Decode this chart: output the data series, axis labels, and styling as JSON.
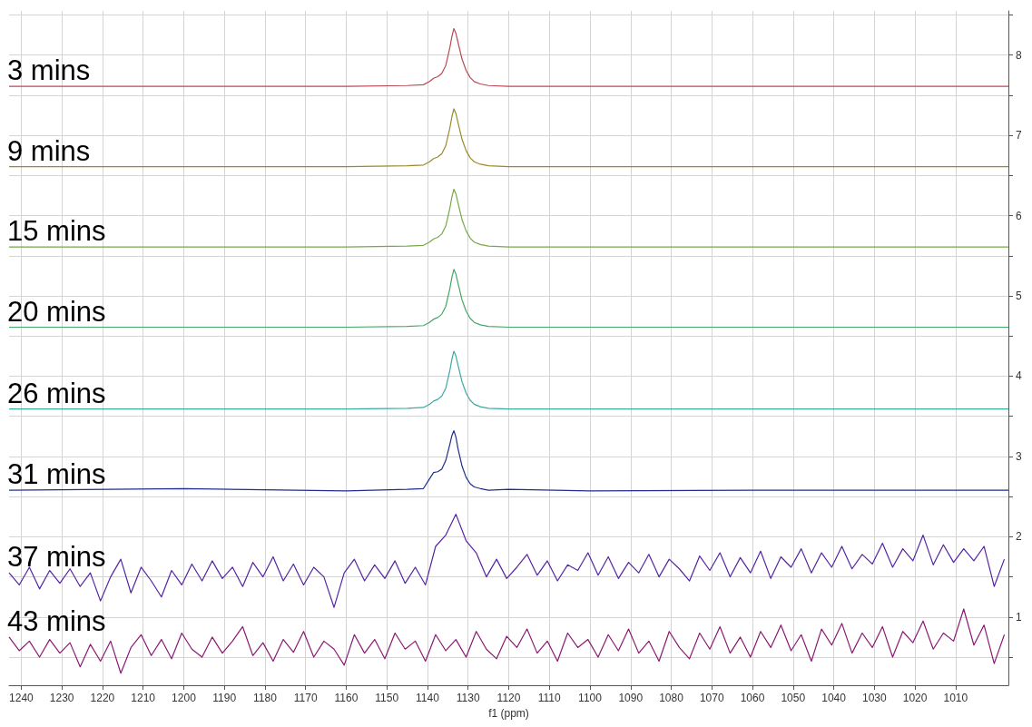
{
  "chart_data": {
    "type": "line",
    "xlabel": "f1 (ppm)",
    "grid": true,
    "x": [
      1243,
      1200,
      1160,
      1145,
      1141,
      1139.5,
      1138.5,
      1137.5,
      1136.5,
      1135.5,
      1134.5,
      1134,
      1133.5,
      1133,
      1132.5,
      1131.5,
      1130.5,
      1129.5,
      1128.5,
      1127,
      1125,
      1120,
      1100,
      1060,
      997
    ],
    "xlim": [
      1243,
      997
    ],
    "xticks": [
      1240,
      1230,
      1220,
      1210,
      1200,
      1190,
      1180,
      1170,
      1160,
      1150,
      1140,
      1130,
      1120,
      1110,
      1100,
      1090,
      1080,
      1070,
      1060,
      1050,
      1040,
      1030,
      1020,
      1010
    ],
    "ylim": [
      0.15,
      8.55
    ],
    "yticks": [
      {
        "value": 0.5,
        "label": null
      },
      1,
      {
        "value": 1.5,
        "label": null
      },
      2,
      {
        "value": 2.5,
        "label": null
      },
      3,
      {
        "value": 3.5,
        "label": null
      },
      4,
      {
        "value": 4.5,
        "label": null
      },
      5,
      {
        "value": 5.5,
        "label": null
      },
      6,
      {
        "value": 6.5,
        "label": null
      },
      7,
      {
        "value": 7.5,
        "label": null
      },
      8,
      {
        "value": 8.5,
        "label": null
      }
    ],
    "series": [
      {
        "name": "3 mins",
        "color": "#b84a55",
        "values": [
          7.61,
          7.61,
          7.61,
          7.62,
          7.63,
          7.67,
          7.71,
          7.73,
          7.77,
          7.87,
          8.09,
          8.23,
          8.33,
          8.27,
          8.16,
          7.95,
          7.81,
          7.72,
          7.67,
          7.64,
          7.62,
          7.61,
          7.61,
          7.61,
          7.61
        ]
      },
      {
        "name": "9 mins",
        "color": "#9a8a2c",
        "values": [
          6.61,
          6.61,
          6.61,
          6.62,
          6.63,
          6.67,
          6.71,
          6.73,
          6.77,
          6.87,
          7.09,
          7.23,
          7.33,
          7.27,
          7.16,
          6.95,
          6.81,
          6.72,
          6.67,
          6.64,
          6.62,
          6.61,
          6.61,
          6.61,
          6.61
        ]
      },
      {
        "name": "15 mins",
        "color": "#78a848",
        "values": [
          5.61,
          5.61,
          5.61,
          5.62,
          5.63,
          5.67,
          5.71,
          5.73,
          5.77,
          5.87,
          6.09,
          6.23,
          6.33,
          6.27,
          6.16,
          5.95,
          5.81,
          5.72,
          5.67,
          5.64,
          5.62,
          5.61,
          5.61,
          5.61,
          5.61
        ]
      },
      {
        "name": "20 mins",
        "color": "#45a865",
        "values": [
          4.61,
          4.61,
          4.61,
          4.62,
          4.63,
          4.67,
          4.71,
          4.73,
          4.77,
          4.87,
          5.09,
          5.23,
          5.33,
          5.27,
          5.16,
          4.95,
          4.81,
          4.72,
          4.67,
          4.64,
          4.62,
          4.61,
          4.61,
          4.61,
          4.61
        ]
      },
      {
        "name": "26 mins",
        "color": "#3aaaa0",
        "values": [
          3.59,
          3.59,
          3.59,
          3.6,
          3.61,
          3.65,
          3.69,
          3.71,
          3.75,
          3.85,
          4.07,
          4.21,
          4.31,
          4.25,
          4.14,
          3.93,
          3.79,
          3.7,
          3.65,
          3.62,
          3.6,
          3.59,
          3.59,
          3.59,
          3.59
        ]
      },
      {
        "name": "31 mins",
        "color": "#1f2f8a",
        "values": [
          2.58,
          2.6,
          2.57,
          2.59,
          2.6,
          2.72,
          2.8,
          2.81,
          2.84,
          2.95,
          3.15,
          3.26,
          3.32,
          3.24,
          3.1,
          2.88,
          2.74,
          2.66,
          2.62,
          2.6,
          2.58,
          2.59,
          2.57,
          2.58,
          2.58
        ]
      },
      {
        "name": "37 mins",
        "color": "#5424a4",
        "x": [
          1243,
          1240.5,
          1238,
          1235.5,
          1233,
          1230.5,
          1228,
          1225.5,
          1223,
          1220.5,
          1218,
          1215.5,
          1213,
          1210.5,
          1208,
          1205.5,
          1203,
          1200.5,
          1198,
          1195.5,
          1193,
          1190.5,
          1188,
          1185.5,
          1183,
          1180.5,
          1178,
          1175.5,
          1173,
          1170.5,
          1168,
          1165.5,
          1163,
          1160.5,
          1158,
          1155.5,
          1153,
          1150.5,
          1148,
          1145.5,
          1143,
          1140.5,
          1138,
          1135.5,
          1133,
          1130.5,
          1128,
          1125.5,
          1123,
          1120.5,
          1118,
          1115.5,
          1113,
          1110.5,
          1108,
          1105.5,
          1103,
          1100.5,
          1098,
          1095.5,
          1093,
          1090.5,
          1088,
          1085.5,
          1083,
          1080.5,
          1078,
          1075.5,
          1073,
          1070.5,
          1068,
          1065.5,
          1063,
          1060.5,
          1058,
          1055.5,
          1053,
          1050.5,
          1048,
          1045.5,
          1043,
          1040.5,
          1038,
          1035.5,
          1033,
          1030.5,
          1028,
          1025.5,
          1023,
          1020.5,
          1018,
          1015.5,
          1013,
          1010.5,
          1008,
          1005.5,
          1003,
          1000.5,
          998
        ],
        "values": [
          1.55,
          1.4,
          1.62,
          1.35,
          1.58,
          1.42,
          1.6,
          1.38,
          1.55,
          1.2,
          1.5,
          1.72,
          1.3,
          1.62,
          1.45,
          1.25,
          1.58,
          1.4,
          1.66,
          1.45,
          1.7,
          1.48,
          1.62,
          1.38,
          1.68,
          1.5,
          1.75,
          1.45,
          1.66,
          1.4,
          1.62,
          1.5,
          1.12,
          1.55,
          1.72,
          1.45,
          1.65,
          1.48,
          1.7,
          1.42,
          1.62,
          1.4,
          1.88,
          2.02,
          2.28,
          1.95,
          1.8,
          1.5,
          1.72,
          1.48,
          1.62,
          1.78,
          1.52,
          1.7,
          1.45,
          1.65,
          1.58,
          1.8,
          1.52,
          1.75,
          1.48,
          1.68,
          1.55,
          1.78,
          1.5,
          1.72,
          1.6,
          1.45,
          1.76,
          1.58,
          1.8,
          1.5,
          1.74,
          1.55,
          1.82,
          1.48,
          1.75,
          1.62,
          1.85,
          1.55,
          1.8,
          1.62,
          1.88,
          1.6,
          1.78,
          1.66,
          1.92,
          1.62,
          1.85,
          1.7,
          2.02,
          1.65,
          1.9,
          1.68,
          1.85,
          1.7,
          1.88,
          1.38,
          1.72
        ]
      },
      {
        "name": "43 mins",
        "color": "#8a1a72",
        "x": [
          1243,
          1240.5,
          1238,
          1235.5,
          1233,
          1230.5,
          1228,
          1225.5,
          1223,
          1220.5,
          1218,
          1215.5,
          1213,
          1210.5,
          1208,
          1205.5,
          1203,
          1200.5,
          1198,
          1195.5,
          1193,
          1190.5,
          1188,
          1185.5,
          1183,
          1180.5,
          1178,
          1175.5,
          1173,
          1170.5,
          1168,
          1165.5,
          1163,
          1160.5,
          1158,
          1155.5,
          1153,
          1150.5,
          1148,
          1145.5,
          1143,
          1140.5,
          1138,
          1135.5,
          1133,
          1130.5,
          1128,
          1125.5,
          1123,
          1120.5,
          1118,
          1115.5,
          1113,
          1110.5,
          1108,
          1105.5,
          1103,
          1100.5,
          1098,
          1095.5,
          1093,
          1090.5,
          1088,
          1085.5,
          1083,
          1080.5,
          1078,
          1075.5,
          1073,
          1070.5,
          1068,
          1065.5,
          1063,
          1060.5,
          1058,
          1055.5,
          1053,
          1050.5,
          1048,
          1045.5,
          1043,
          1040.5,
          1038,
          1035.5,
          1033,
          1030.5,
          1028,
          1025.5,
          1023,
          1020.5,
          1018,
          1015.5,
          1013,
          1010.5,
          1008,
          1005.5,
          1003,
          1000.5,
          998
        ],
        "values": [
          0.75,
          0.58,
          0.7,
          0.5,
          0.72,
          0.55,
          0.68,
          0.38,
          0.66,
          0.45,
          0.7,
          0.3,
          0.62,
          0.78,
          0.52,
          0.72,
          0.48,
          0.8,
          0.6,
          0.5,
          0.75,
          0.55,
          0.7,
          0.88,
          0.52,
          0.68,
          0.45,
          0.72,
          0.56,
          0.82,
          0.5,
          0.7,
          0.6,
          0.4,
          0.78,
          0.55,
          0.72,
          0.48,
          0.8,
          0.6,
          0.7,
          0.45,
          0.78,
          0.58,
          0.72,
          0.5,
          0.82,
          0.6,
          0.48,
          0.76,
          0.62,
          0.85,
          0.55,
          0.7,
          0.45,
          0.8,
          0.62,
          0.72,
          0.5,
          0.78,
          0.58,
          0.85,
          0.55,
          0.7,
          0.45,
          0.82,
          0.62,
          0.48,
          0.8,
          0.6,
          0.88,
          0.55,
          0.75,
          0.5,
          0.82,
          0.62,
          0.9,
          0.58,
          0.78,
          0.45,
          0.85,
          0.65,
          0.92,
          0.55,
          0.8,
          0.62,
          0.88,
          0.5,
          0.82,
          0.68,
          0.95,
          0.6,
          0.8,
          0.7,
          1.1,
          0.65,
          0.9,
          0.42,
          0.78
        ]
      }
    ]
  }
}
